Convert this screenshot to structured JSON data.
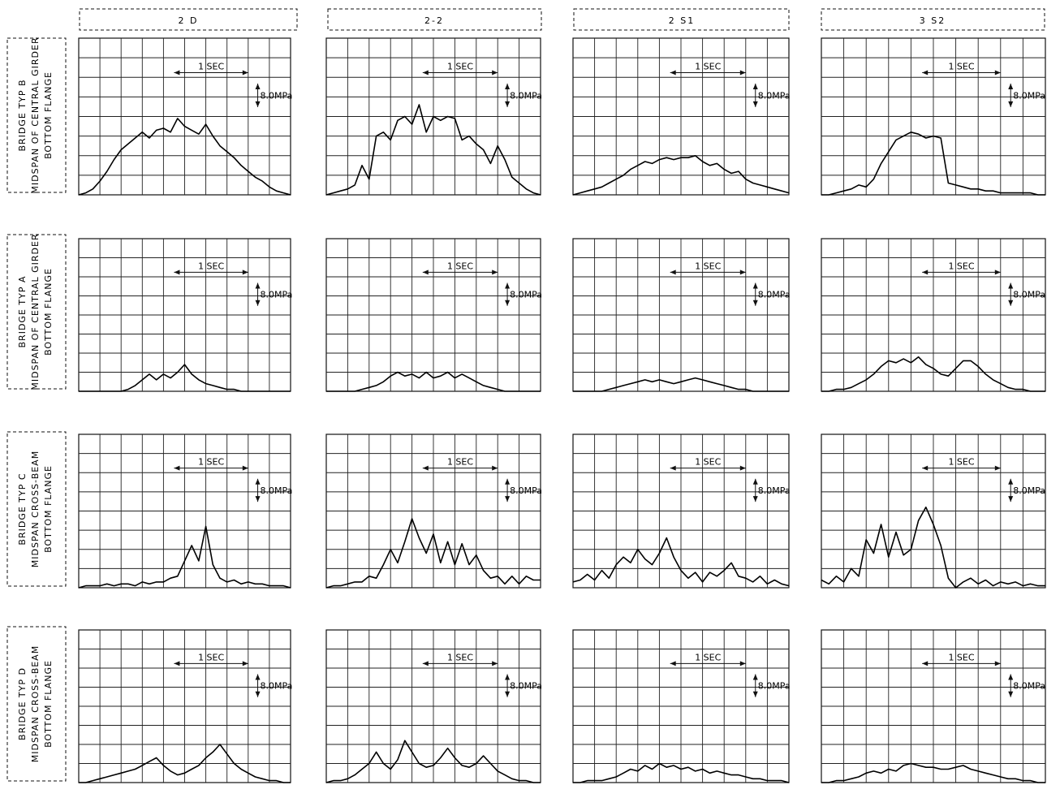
{
  "columns": [
    "2 D",
    "2-2",
    "2 S1",
    "3 S2"
  ],
  "rows": [
    {
      "line1": "BRIDGE  TYP  B",
      "line2": "MIDSPAN OF CENTRAL GIRDER",
      "line3": "BOTTOM  FLANGE"
    },
    {
      "line1": "BRIDGE  TYP  A",
      "line2": "MIDSPAN OF CENTRAL GIRDER",
      "line3": "BOTTOM  FLANGE"
    },
    {
      "line1": "BRIDGE  TYP  C",
      "line2": "MIDSPAN  CROSS-BEAM",
      "line3": "BOTTOM  FLANGE"
    },
    {
      "line1": "BRIDGE  TYP  D",
      "line2": "MIDSPAN  CROSS-BEAM",
      "line3": "BOTTOM  FLANGE"
    }
  ],
  "annotations": {
    "time_scale": "1 SEC",
    "stress_scale": "8.0MPa"
  },
  "chart_data": {
    "type": "line",
    "grid": true,
    "grid_divisions": {
      "x": 10,
      "y": 8
    },
    "value_scale_note": "y in grid divisions (0-8) from the bottom of each panel; x in grid divisions (0-10)",
    "panels": [
      {
        "row": 0,
        "col": 0,
        "y": [
          0.0,
          0.1,
          0.3,
          0.7,
          1.2,
          1.8,
          2.3,
          2.6,
          2.9,
          3.2,
          2.9,
          3.3,
          3.4,
          3.2,
          3.9,
          3.5,
          3.3,
          3.1,
          3.6,
          3.0,
          2.5,
          2.2,
          1.9,
          1.5,
          1.2,
          0.9,
          0.7,
          0.4,
          0.2,
          0.1,
          0.0
        ]
      },
      {
        "row": 0,
        "col": 1,
        "y": [
          0.0,
          0.1,
          0.2,
          0.3,
          0.5,
          1.5,
          0.8,
          3.0,
          3.2,
          2.8,
          3.8,
          4.0,
          3.6,
          4.6,
          3.2,
          4.0,
          3.8,
          4.0,
          3.9,
          2.8,
          3.0,
          2.6,
          2.3,
          1.6,
          2.5,
          1.8,
          0.9,
          0.6,
          0.3,
          0.1,
          0.0
        ]
      },
      {
        "row": 0,
        "col": 2,
        "y": [
          0.0,
          0.1,
          0.2,
          0.3,
          0.4,
          0.6,
          0.8,
          1.0,
          1.3,
          1.5,
          1.7,
          1.6,
          1.8,
          1.9,
          1.8,
          1.9,
          1.9,
          2.0,
          1.7,
          1.5,
          1.6,
          1.3,
          1.1,
          1.2,
          0.8,
          0.6,
          0.5,
          0.4,
          0.3,
          0.2,
          0.1
        ]
      },
      {
        "row": 0,
        "col": 3,
        "y": [
          0.0,
          0.0,
          0.1,
          0.2,
          0.3,
          0.5,
          0.4,
          0.8,
          1.6,
          2.2,
          2.8,
          3.0,
          3.2,
          3.1,
          2.9,
          3.0,
          2.9,
          0.6,
          0.5,
          0.4,
          0.3,
          0.3,
          0.2,
          0.2,
          0.1,
          0.1,
          0.1,
          0.1,
          0.1,
          0.0,
          0.0
        ]
      },
      {
        "row": 1,
        "col": 0,
        "y": [
          0.0,
          0.0,
          0.0,
          0.0,
          0.0,
          0.0,
          0.0,
          0.1,
          0.3,
          0.6,
          0.9,
          0.6,
          0.9,
          0.7,
          1.0,
          1.4,
          0.9,
          0.6,
          0.4,
          0.3,
          0.2,
          0.1,
          0.1,
          0.0,
          0.0,
          0.0,
          0.0,
          0.0,
          0.0,
          0.0,
          0.0
        ]
      },
      {
        "row": 1,
        "col": 1,
        "y": [
          0.0,
          0.0,
          0.0,
          0.0,
          0.0,
          0.1,
          0.2,
          0.3,
          0.5,
          0.8,
          1.0,
          0.8,
          0.9,
          0.7,
          1.0,
          0.7,
          0.8,
          1.0,
          0.7,
          0.9,
          0.7,
          0.5,
          0.3,
          0.2,
          0.1,
          0.0,
          0.0,
          0.0,
          0.0,
          0.0,
          0.0
        ]
      },
      {
        "row": 1,
        "col": 2,
        "y": [
          0.0,
          0.0,
          0.0,
          0.0,
          0.0,
          0.1,
          0.2,
          0.3,
          0.4,
          0.5,
          0.6,
          0.5,
          0.6,
          0.5,
          0.4,
          0.5,
          0.6,
          0.7,
          0.6,
          0.5,
          0.4,
          0.3,
          0.2,
          0.1,
          0.1,
          0.0,
          0.0,
          0.0,
          0.0,
          0.0,
          0.0
        ]
      },
      {
        "row": 1,
        "col": 3,
        "y": [
          0.0,
          0.0,
          0.1,
          0.1,
          0.2,
          0.4,
          0.6,
          0.9,
          1.3,
          1.6,
          1.5,
          1.7,
          1.5,
          1.8,
          1.4,
          1.2,
          0.9,
          0.8,
          1.2,
          1.6,
          1.6,
          1.3,
          0.9,
          0.6,
          0.4,
          0.2,
          0.1,
          0.1,
          0.0,
          0.0,
          0.0
        ]
      },
      {
        "row": 2,
        "col": 0,
        "y": [
          0.0,
          0.1,
          0.1,
          0.1,
          0.2,
          0.1,
          0.2,
          0.2,
          0.1,
          0.3,
          0.2,
          0.3,
          0.3,
          0.5,
          0.6,
          1.4,
          2.2,
          1.4,
          3.2,
          1.2,
          0.5,
          0.3,
          0.4,
          0.2,
          0.3,
          0.2,
          0.2,
          0.1,
          0.1,
          0.1,
          0.0
        ]
      },
      {
        "row": 2,
        "col": 1,
        "y": [
          0.0,
          0.1,
          0.1,
          0.2,
          0.3,
          0.3,
          0.6,
          0.5,
          1.2,
          2.0,
          1.3,
          2.4,
          3.6,
          2.6,
          1.8,
          2.8,
          1.3,
          2.4,
          1.2,
          2.3,
          1.2,
          1.7,
          0.9,
          0.5,
          0.6,
          0.2,
          0.6,
          0.2,
          0.6,
          0.4,
          0.4
        ]
      },
      {
        "row": 2,
        "col": 2,
        "y": [
          0.3,
          0.4,
          0.7,
          0.4,
          0.9,
          0.5,
          1.2,
          1.6,
          1.3,
          2.0,
          1.5,
          1.2,
          1.8,
          2.6,
          1.6,
          0.9,
          0.5,
          0.8,
          0.3,
          0.8,
          0.6,
          0.9,
          1.3,
          0.6,
          0.5,
          0.3,
          0.6,
          0.2,
          0.4,
          0.2,
          0.1
        ]
      },
      {
        "row": 2,
        "col": 3,
        "y": [
          0.4,
          0.2,
          0.6,
          0.3,
          1.0,
          0.6,
          2.5,
          1.8,
          3.3,
          1.6,
          2.9,
          1.7,
          2.0,
          3.5,
          4.2,
          3.3,
          2.2,
          0.5,
          0.0,
          0.3,
          0.5,
          0.2,
          0.4,
          0.1,
          0.3,
          0.2,
          0.3,
          0.1,
          0.2,
          0.1,
          0.1
        ]
      },
      {
        "row": 3,
        "col": 0,
        "y": [
          0.0,
          0.0,
          0.1,
          0.2,
          0.3,
          0.4,
          0.5,
          0.6,
          0.7,
          0.9,
          1.1,
          1.3,
          0.9,
          0.6,
          0.4,
          0.5,
          0.7,
          0.9,
          1.3,
          1.6,
          2.0,
          1.5,
          1.0,
          0.7,
          0.5,
          0.3,
          0.2,
          0.1,
          0.1,
          0.0,
          0.0
        ]
      },
      {
        "row": 3,
        "col": 1,
        "y": [
          0.0,
          0.1,
          0.1,
          0.2,
          0.4,
          0.7,
          1.0,
          1.6,
          1.0,
          0.7,
          1.2,
          2.2,
          1.6,
          1.0,
          0.8,
          0.9,
          1.3,
          1.8,
          1.3,
          0.9,
          0.8,
          1.0,
          1.4,
          1.0,
          0.6,
          0.4,
          0.2,
          0.1,
          0.1,
          0.0,
          0.0
        ]
      },
      {
        "row": 3,
        "col": 2,
        "y": [
          0.0,
          0.0,
          0.1,
          0.1,
          0.1,
          0.2,
          0.3,
          0.5,
          0.7,
          0.6,
          0.9,
          0.7,
          1.0,
          0.8,
          0.9,
          0.7,
          0.8,
          0.6,
          0.7,
          0.5,
          0.6,
          0.5,
          0.4,
          0.4,
          0.3,
          0.2,
          0.2,
          0.1,
          0.1,
          0.1,
          0.0
        ]
      },
      {
        "row": 3,
        "col": 3,
        "y": [
          0.0,
          0.0,
          0.1,
          0.1,
          0.2,
          0.3,
          0.5,
          0.6,
          0.5,
          0.7,
          0.6,
          0.9,
          1.0,
          0.9,
          0.8,
          0.8,
          0.7,
          0.7,
          0.8,
          0.9,
          0.7,
          0.6,
          0.5,
          0.4,
          0.3,
          0.2,
          0.2,
          0.1,
          0.1,
          0.0,
          0.0
        ]
      }
    ]
  }
}
